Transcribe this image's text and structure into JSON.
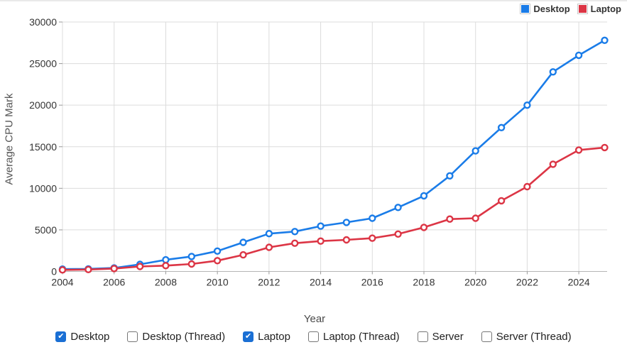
{
  "chart_data": {
    "type": "line",
    "title": "",
    "xlabel": "Year",
    "ylabel": "Average CPU Mark",
    "x": [
      2004,
      2005,
      2006,
      2007,
      2008,
      2009,
      2010,
      2011,
      2012,
      2013,
      2014,
      2015,
      2016,
      2017,
      2018,
      2019,
      2020,
      2021,
      2022,
      2023,
      2024,
      2025
    ],
    "xticks": [
      2004,
      2006,
      2008,
      2010,
      2012,
      2014,
      2016,
      2018,
      2020,
      2022,
      2024
    ],
    "yticks": [
      0,
      5000,
      10000,
      15000,
      20000,
      25000,
      30000
    ],
    "xlim": [
      2004,
      2025
    ],
    "ylim": [
      0,
      30000
    ],
    "grid": true,
    "legend_position": "top-right",
    "series": [
      {
        "name": "Desktop",
        "color": "#1a7ce8",
        "marker": "open-circle",
        "values": [
          280,
          310,
          420,
          850,
          1400,
          1800,
          2450,
          3500,
          4550,
          4800,
          5450,
          5900,
          6400,
          7700,
          9100,
          11500,
          14500,
          17300,
          20000,
          24000,
          26000,
          27800
        ]
      },
      {
        "name": "Laptop",
        "color": "#dc3545",
        "marker": "open-circle",
        "values": [
          190,
          230,
          350,
          600,
          700,
          900,
          1300,
          2000,
          2900,
          3400,
          3650,
          3800,
          4000,
          4500,
          5300,
          6300,
          6400,
          8500,
          10200,
          12900,
          14600,
          14900
        ]
      }
    ]
  },
  "colors": {
    "grid": "#dcdcdc",
    "axis_line": "#b5b5b5",
    "tick": "#999999",
    "tick_text": "#333333",
    "axis_title": "#555555",
    "checkbox_checked": "#1a6fd4"
  },
  "controls": {
    "items": [
      {
        "label": "Desktop",
        "checked": true
      },
      {
        "label": "Desktop (Thread)",
        "checked": false
      },
      {
        "label": "Laptop",
        "checked": true
      },
      {
        "label": "Laptop (Thread)",
        "checked": false
      },
      {
        "label": "Server",
        "checked": false
      },
      {
        "label": "Server (Thread)",
        "checked": false
      }
    ]
  }
}
